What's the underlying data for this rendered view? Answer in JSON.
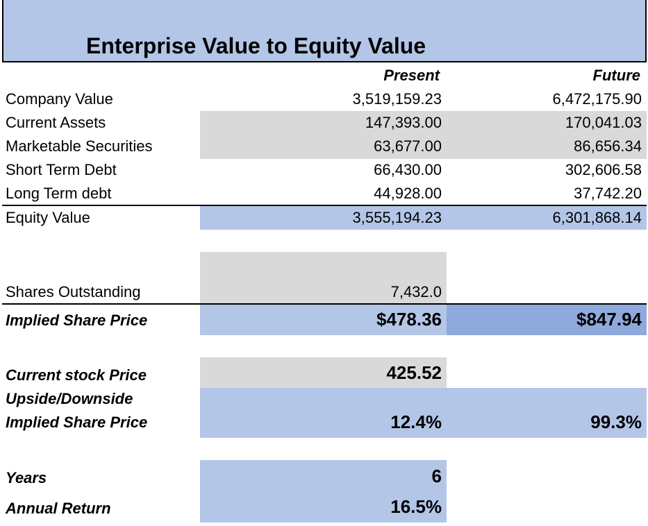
{
  "title": "Enterprise Value to Equity Value",
  "columns": {
    "present": "Present",
    "future": "Future"
  },
  "rows": [
    {
      "label": "Company Value",
      "present": "3,519,159.23",
      "future": "6,472,175.90"
    },
    {
      "label": "Current Assets",
      "present": "147,393.00",
      "future": "170,041.03"
    },
    {
      "label": "Marketable Securities",
      "present": "63,677.00",
      "future": "86,656.34"
    },
    {
      "label": "Short Term Debt",
      "present": "66,430.00",
      "future": "302,606.58"
    },
    {
      "label": "Long Term debt",
      "present": "44,928.00",
      "future": "37,742.20"
    },
    {
      "label": "Equity Value",
      "present": "3,555,194.23",
      "future": "6,301,868.14"
    }
  ],
  "shares": {
    "label": "Shares Outstanding",
    "present": "7,432.0"
  },
  "implied": {
    "label": "Implied Share Price",
    "present": "$478.36",
    "future": "$847.94"
  },
  "current_price": {
    "label": "Current stock Price",
    "present": "425.52"
  },
  "upside": {
    "label_line1": "Upside/Downside",
    "label_line2": "Implied Share Price",
    "present": "12.4%",
    "future": "99.3%"
  },
  "years": {
    "label": "Years",
    "present": "6"
  },
  "annual_return": {
    "label": "Annual Return",
    "present": "16.5%"
  }
}
